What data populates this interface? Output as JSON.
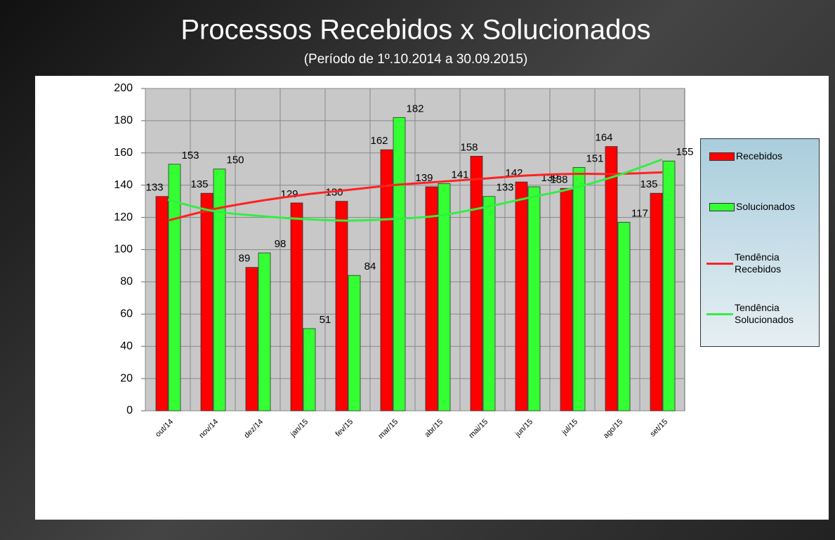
{
  "chart_data": {
    "type": "bar",
    "title": "Processos Recebidos x Solucionados",
    "subtitle": "(Período de 1º.10.2014  a  30.09.2015)",
    "categories": [
      "out/14",
      "nov/14",
      "dez/14",
      "jan/15",
      "fev/15",
      "mar/15",
      "abr/15",
      "mai/15",
      "jun/15",
      "jul/15",
      "ago/15",
      "set/15"
    ],
    "series": [
      {
        "name": "Recebidos",
        "type": "bar",
        "color": "#ff0000",
        "values": [
          133,
          135,
          89,
          129,
          130,
          162,
          139,
          158,
          142,
          138,
          164,
          135
        ]
      },
      {
        "name": "Solucionados",
        "type": "bar",
        "color": "#33ff33",
        "values": [
          153,
          150,
          98,
          51,
          84,
          182,
          141,
          133,
          139,
          151,
          117,
          155
        ]
      },
      {
        "name": "Tendência Recebidos",
        "type": "line",
        "color": "#ff2222",
        "values": [
          118,
          125,
          130,
          134,
          137,
          140,
          142,
          144,
          146,
          147,
          147,
          148
        ]
      },
      {
        "name": "Tendência Solucionados",
        "type": "line",
        "color": "#33ee44",
        "values": [
          131,
          124,
          121,
          119,
          118,
          119,
          121,
          126,
          132,
          138,
          146,
          156
        ]
      }
    ],
    "ylim": [
      0,
      200
    ],
    "yticks": [
      0,
      20,
      40,
      60,
      80,
      100,
      120,
      140,
      160,
      180,
      200
    ],
    "grid": true,
    "legend": "right"
  }
}
